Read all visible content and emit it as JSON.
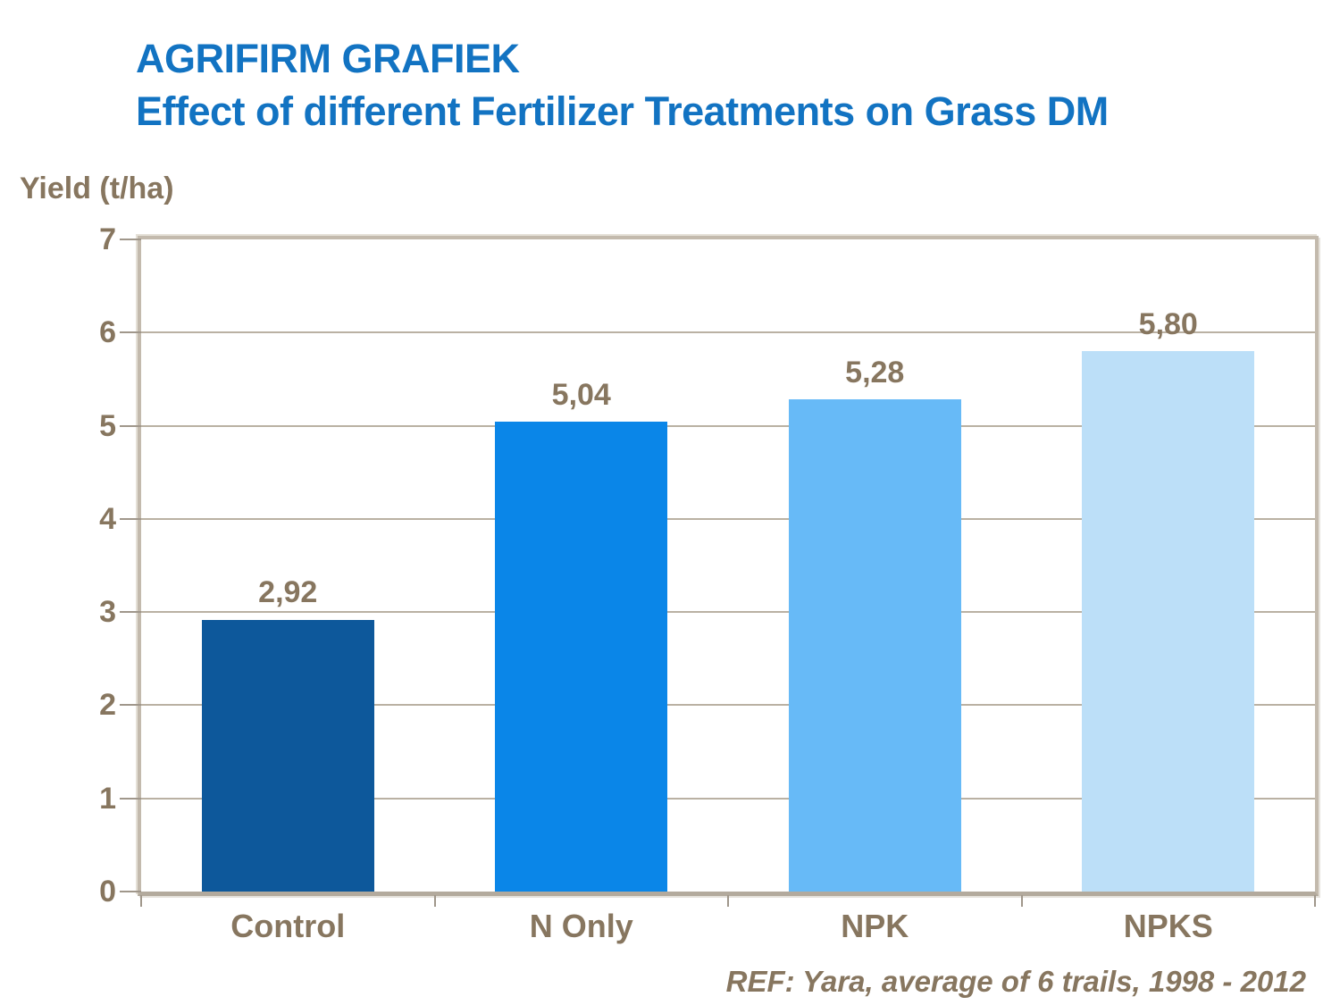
{
  "header": {
    "title_line1": "AGRIFIRM GRAFIEK",
    "title_line2": "Effect of different Fertilizer Treatments on Grass DM"
  },
  "chart_data": {
    "type": "bar",
    "title": "AGRIFIRM GRAFIEK - Effect of different Fertilizer Treatments on Grass DM",
    "ylabel": "Yield (t/ha)",
    "xlabel": "",
    "categories": [
      "Control",
      "N Only",
      "NPK",
      "NPKS"
    ],
    "values": [
      2.92,
      5.04,
      5.28,
      5.8
    ],
    "value_labels": [
      "2,92",
      "5,04",
      "5,28",
      "5,80"
    ],
    "ylim": [
      0,
      7
    ],
    "yticks": [
      0,
      1,
      2,
      3,
      4,
      5,
      6,
      7
    ],
    "grid": "horizontal",
    "legend": "none",
    "bar_colors": [
      "#0D589B",
      "#0A86E8",
      "#67BAF7",
      "#BCDFF8"
    ]
  },
  "footer": {
    "reference": "REF: Yara, average of 6 trails, 1998 - 2012"
  },
  "colors": {
    "title_blue": "#1273C2",
    "axis_text": "#87765F",
    "plot_border": "#C3BAAD",
    "axis_line": "#B3AA9D",
    "gridline": "#BAB1A3",
    "tick": "#A0978B"
  }
}
